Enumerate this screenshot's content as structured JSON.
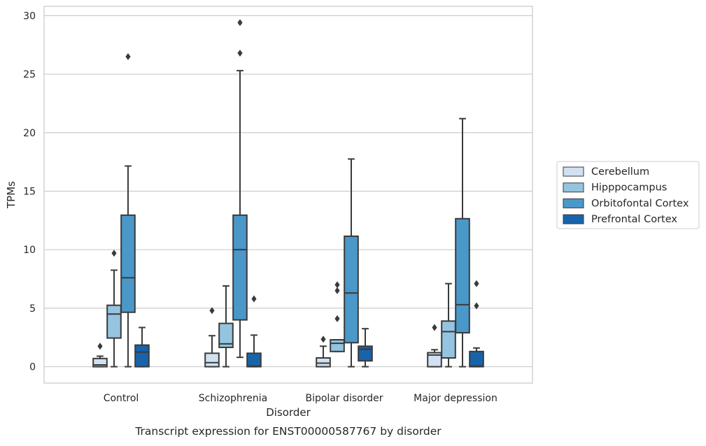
{
  "chart_data": {
    "type": "boxplot",
    "caption": "Transcript expression for ENST00000587767 by disorder",
    "xlabel": "Disorder",
    "ylabel": "TPMs",
    "ylim": [
      -1.4,
      30.8
    ],
    "yticks": [
      0,
      5,
      10,
      15,
      20,
      25,
      30
    ],
    "grid": "horizontal",
    "legend_position": "right",
    "categories": [
      "Control",
      "Schizophrenia",
      "Bipolar disorder",
      "Major depression"
    ],
    "series": [
      {
        "name": "Cerebellum",
        "color": "#d0e1f2",
        "boxes": [
          {
            "whislo": 0.0,
            "q1": 0.0,
            "med": 0.15,
            "q3": 0.7,
            "whishi": 0.9,
            "fliers": [
              1.75
            ]
          },
          {
            "whislo": 0.0,
            "q1": 0.0,
            "med": 0.35,
            "q3": 1.15,
            "whishi": 2.65,
            "fliers": [
              4.8
            ]
          },
          {
            "whislo": 0.0,
            "q1": 0.0,
            "med": 0.3,
            "q3": 0.75,
            "whishi": 1.75,
            "fliers": [
              2.35
            ]
          },
          {
            "whislo": 0.0,
            "q1": 0.0,
            "med": 1.0,
            "q3": 1.2,
            "whishi": 1.45,
            "fliers": [
              3.35
            ]
          }
        ]
      },
      {
        "name": "Hipppocampus",
        "color": "#94c4df",
        "boxes": [
          {
            "whislo": 0.0,
            "q1": 2.45,
            "med": 4.5,
            "q3": 5.25,
            "whishi": 8.25,
            "fliers": [
              9.7
            ]
          },
          {
            "whislo": 0.0,
            "q1": 1.65,
            "med": 1.95,
            "q3": 3.7,
            "whishi": 6.9,
            "fliers": []
          },
          {
            "whislo": 1.3,
            "q1": 1.3,
            "med": 2.0,
            "q3": 2.3,
            "whishi": 2.3,
            "fliers": [
              4.1,
              6.5,
              7.0
            ]
          },
          {
            "whislo": 0.0,
            "q1": 0.75,
            "med": 3.0,
            "q3": 3.9,
            "whishi": 7.1,
            "fliers": []
          }
        ]
      },
      {
        "name": "Orbitofontal Cortex",
        "color": "#4a98c9",
        "boxes": [
          {
            "whislo": 0.0,
            "q1": 4.65,
            "med": 7.6,
            "q3": 12.95,
            "whishi": 17.15,
            "fliers": [
              26.5
            ]
          },
          {
            "whislo": 0.8,
            "q1": 4.0,
            "med": 10.0,
            "q3": 12.95,
            "whishi": 25.3,
            "fliers": [
              26.8,
              29.4
            ]
          },
          {
            "whislo": 0.0,
            "q1": 2.05,
            "med": 6.3,
            "q3": 11.15,
            "whishi": 17.75,
            "fliers": []
          },
          {
            "whislo": 0.0,
            "q1": 2.9,
            "med": 5.3,
            "q3": 12.65,
            "whishi": 21.2,
            "fliers": []
          }
        ]
      },
      {
        "name": "Prefrontal Cortex",
        "color": "#1764ab",
        "boxes": [
          {
            "whislo": 0.0,
            "q1": 0.0,
            "med": 1.25,
            "q3": 1.85,
            "whishi": 3.35,
            "fliers": []
          },
          {
            "whislo": 0.0,
            "q1": 0.0,
            "med": 0.05,
            "q3": 1.15,
            "whishi": 2.7,
            "fliers": [
              5.8
            ]
          },
          {
            "whislo": 0.0,
            "q1": 0.5,
            "med": 1.5,
            "q3": 1.75,
            "whishi": 3.25,
            "fliers": []
          },
          {
            "whislo": 0.0,
            "q1": 0.0,
            "med": 0.05,
            "q3": 1.3,
            "whishi": 1.6,
            "fliers": [
              5.2,
              7.1
            ]
          }
        ]
      }
    ]
  }
}
